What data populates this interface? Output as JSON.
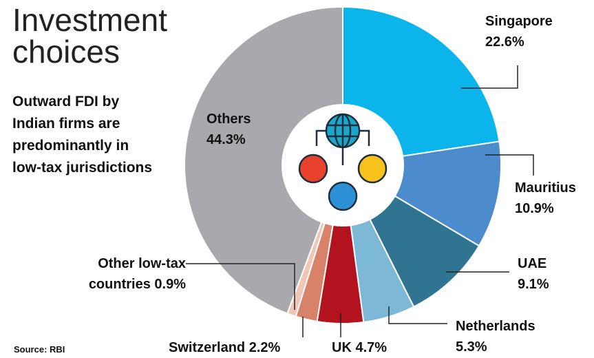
{
  "chart_data": {
    "type": "donut",
    "title": "Investment choices",
    "subtitle": "Outward FDI by Indian firms are predominantly in low-tax jurisdictions",
    "source": "Source: RBI",
    "categories": [
      "Singapore",
      "Mauritius",
      "UAE",
      "Netherlands",
      "UK",
      "Switzerland",
      "Other low-tax countries",
      "Others"
    ],
    "values": [
      22.6,
      10.9,
      9.1,
      5.3,
      4.7,
      2.2,
      0.9,
      44.3
    ],
    "value_labels": [
      "22.6%",
      "10.9%",
      "9.1%",
      "5.3%",
      "4.7%",
      "2.2%",
      "0.9%",
      "44.3%"
    ],
    "colors": [
      "#0bb4ea",
      "#4d8ccc",
      "#2f7592",
      "#7db9d7",
      "#b3121f",
      "#d9826a",
      "#f2c6b4",
      "#a7a9ac"
    ]
  }
}
